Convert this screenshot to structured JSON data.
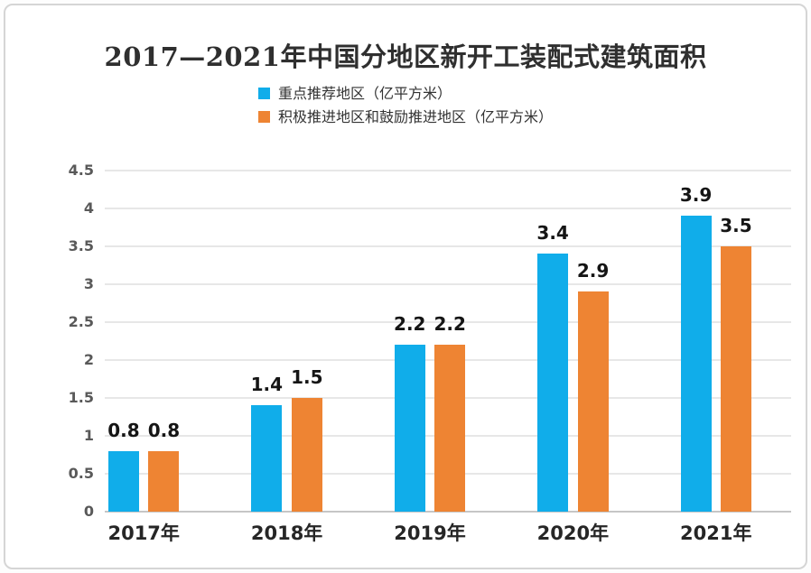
{
  "title": "2017—2021年中国分地区新开工装配式建筑面积",
  "legend": {
    "items": [
      {
        "label": "重点推荐地区（亿平方米）",
        "color": "#10ADEA"
      },
      {
        "label": "积极推进地区和鼓励推进地区（亿平方米）",
        "color": "#EE8433"
      }
    ]
  },
  "chart_data": {
    "type": "bar",
    "title": "2017—2021年中国分地区新开工装配式建筑面积",
    "categories": [
      "2017年",
      "2018年",
      "2019年",
      "2020年",
      "2021年"
    ],
    "series": [
      {
        "name": "重点推荐地区（亿平方米）",
        "color": "#10ADEA",
        "values": [
          0.8,
          1.4,
          2.2,
          3.4,
          3.9
        ]
      },
      {
        "name": "积极推进地区和鼓励推进地区（亿平方米）",
        "color": "#EE8433",
        "values": [
          0.8,
          1.5,
          2.2,
          2.9,
          3.5
        ]
      }
    ],
    "xlabel": "",
    "ylabel": "",
    "ylim": [
      0,
      4.5
    ],
    "yticks": [
      0,
      0.5,
      1,
      1.5,
      2,
      2.5,
      3,
      3.5,
      4,
      4.5
    ],
    "grid": true,
    "legend_position": "top",
    "data_labels": true
  },
  "colors": {
    "gridline": "#e7e7e7",
    "baseline": "#c6c6c6",
    "frame_border": "#d5d5d5",
    "title_text": "#2f2f2f",
    "axis_tick_text": "#595959",
    "value_label_text": "#151515"
  }
}
